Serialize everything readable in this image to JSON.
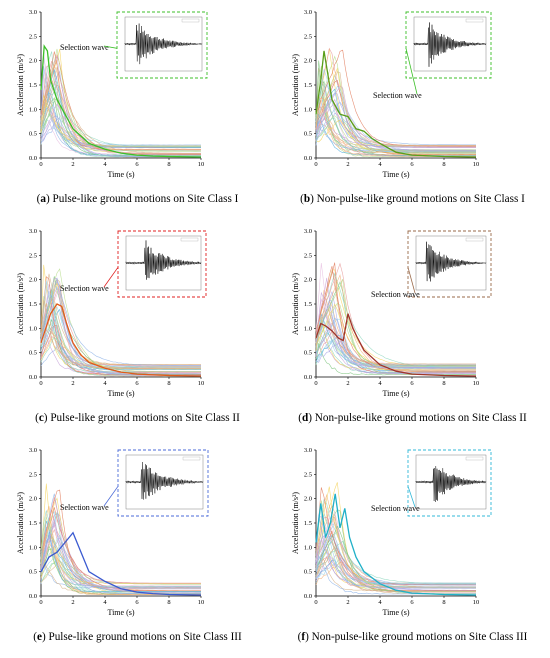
{
  "chart_data": [
    {
      "type": "line",
      "panel_letter": "a",
      "caption": "Pulse-like ground motions on Site Class I",
      "xlabel": "Time (s)",
      "ylabel": "Acceleration (m/s²)",
      "xlim": [
        0,
        10
      ],
      "ylim": [
        0,
        3.0
      ],
      "xticks": [
        0,
        2,
        4,
        6,
        8,
        10
      ],
      "yticks": [
        0.0,
        0.5,
        1.0,
        1.5,
        2.0,
        2.5,
        3.0
      ],
      "annotation": "Selection wave",
      "highlight_color": "#3cbf28",
      "inset_border_color": "#3cbf28",
      "highlight_curve": {
        "x": [
          0,
          0.2,
          0.4,
          0.6,
          1.0,
          1.5,
          2.0,
          3.0,
          4.0,
          5.0,
          6.0,
          7.0,
          8.0,
          10.0
        ],
        "y": [
          1.4,
          2.3,
          2.2,
          1.6,
          1.2,
          0.9,
          0.6,
          0.3,
          0.18,
          0.1,
          0.06,
          0.04,
          0.03,
          0.02
        ]
      }
    },
    {
      "type": "line",
      "panel_letter": "b",
      "caption": "Non-pulse-like ground motions on Site Class I",
      "xlabel": "Time (s)",
      "ylabel": "Acceleration (m/s²)",
      "xlim": [
        0,
        10
      ],
      "ylim": [
        0,
        3.0
      ],
      "xticks": [
        0,
        2,
        4,
        6,
        8,
        10
      ],
      "yticks": [
        0.0,
        0.5,
        1.0,
        1.5,
        2.0,
        2.5,
        3.0
      ],
      "annotation": "Selection wave",
      "highlight_color": "#5a9e1a",
      "inset_border_color": "#3cbf28",
      "highlight_curve": {
        "x": [
          0,
          0.3,
          0.5,
          0.7,
          1.0,
          1.5,
          2.0,
          2.5,
          3.0,
          3.5,
          4.0,
          5.0,
          6.0,
          8.0,
          10.0
        ],
        "y": [
          0.9,
          1.6,
          2.2,
          1.8,
          1.2,
          0.9,
          0.85,
          0.6,
          0.55,
          0.4,
          0.3,
          0.12,
          0.06,
          0.03,
          0.02
        ]
      }
    },
    {
      "type": "line",
      "panel_letter": "c",
      "caption": "Pulse-like ground motions on Site Class II",
      "xlabel": "Time (s)",
      "ylabel": "Acceleration (m/s²)",
      "xlim": [
        0,
        10
      ],
      "ylim": [
        0,
        3.0
      ],
      "xticks": [
        0,
        2,
        4,
        6,
        8,
        10
      ],
      "yticks": [
        0.0,
        0.5,
        1.0,
        1.5,
        2.0,
        2.5,
        3.0
      ],
      "annotation": "Selection wave",
      "highlight_color": "#e05a1a",
      "inset_border_color": "#e02020",
      "highlight_curve": {
        "x": [
          0,
          0.3,
          0.6,
          1.0,
          1.3,
          1.6,
          2.0,
          2.5,
          3.0,
          4.0,
          5.0,
          6.0,
          8.0,
          10.0
        ],
        "y": [
          0.7,
          1.0,
          1.3,
          1.5,
          1.45,
          1.1,
          0.7,
          0.45,
          0.3,
          0.18,
          0.1,
          0.06,
          0.03,
          0.02
        ]
      }
    },
    {
      "type": "line",
      "panel_letter": "d",
      "caption": "Non-pulse-like ground motions on Site Class II",
      "xlabel": "Time (s)",
      "ylabel": "Acceleration (m/s²)",
      "xlim": [
        0,
        10
      ],
      "ylim": [
        0,
        3.0
      ],
      "xticks": [
        0,
        2,
        4,
        6,
        8,
        10
      ],
      "yticks": [
        0.0,
        0.5,
        1.0,
        1.5,
        2.0,
        2.5,
        3.0
      ],
      "annotation": "Selection wave",
      "highlight_color": "#a0352a",
      "inset_border_color": "#9a6a4a",
      "highlight_curve": {
        "x": [
          0,
          0.3,
          0.6,
          1.0,
          1.4,
          1.7,
          2.0,
          2.3,
          2.6,
          3.0,
          4.0,
          5.0,
          6.0,
          8.0,
          10.0
        ],
        "y": [
          0.8,
          1.1,
          1.05,
          0.95,
          0.8,
          0.75,
          1.3,
          1.0,
          0.8,
          0.55,
          0.25,
          0.12,
          0.06,
          0.03,
          0.02
        ]
      }
    },
    {
      "type": "line",
      "panel_letter": "e",
      "caption": "Pulse-like ground motions on Site Class III",
      "xlabel": "Time (s)",
      "ylabel": "Acceleration (m/s²)",
      "xlim": [
        0,
        10
      ],
      "ylim": [
        0,
        3.0
      ],
      "xticks": [
        0,
        2,
        4,
        6,
        8,
        10
      ],
      "yticks": [
        0.0,
        0.5,
        1.0,
        1.5,
        2.0,
        2.5,
        3.0
      ],
      "annotation": "Selection wave",
      "highlight_color": "#3a5ad0",
      "inset_border_color": "#4a6ad8",
      "highlight_curve": {
        "x": [
          0,
          0.5,
          1.0,
          1.5,
          2.0,
          2.5,
          3.0,
          4.0,
          5.0,
          6.0,
          7.0,
          8.0,
          10.0
        ],
        "y": [
          0.5,
          0.8,
          0.9,
          1.1,
          1.3,
          0.9,
          0.5,
          0.3,
          0.15,
          0.08,
          0.05,
          0.03,
          0.02
        ]
      }
    },
    {
      "type": "line",
      "panel_letter": "f",
      "caption": "Non-pulse-like ground motions on Site Class III",
      "xlabel": "Time (s)",
      "ylabel": "Acceleration (m/s²)",
      "xlim": [
        0,
        10
      ],
      "ylim": [
        0,
        3.0
      ],
      "xticks": [
        0,
        2,
        4,
        6,
        8,
        10
      ],
      "yticks": [
        0.0,
        0.5,
        1.0,
        1.5,
        2.0,
        2.5,
        3.0
      ],
      "annotation": "Selection wave",
      "highlight_color": "#20b0c8",
      "inset_border_color": "#30b8d8",
      "highlight_curve": {
        "x": [
          0,
          0.3,
          0.6,
          0.9,
          1.2,
          1.5,
          1.8,
          2.1,
          2.5,
          3.0,
          4.0,
          5.0,
          6.0,
          8.0,
          10.0
        ],
        "y": [
          1.1,
          1.9,
          1.2,
          1.5,
          2.1,
          1.4,
          1.8,
          1.2,
          0.8,
          0.5,
          0.25,
          0.12,
          0.06,
          0.03,
          0.02
        ]
      }
    }
  ]
}
